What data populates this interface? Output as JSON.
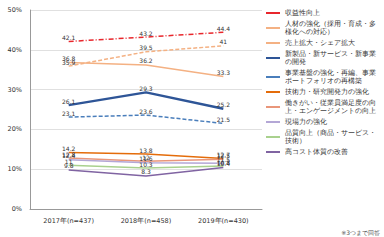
{
  "chart_data": {
    "type": "line",
    "categories": [
      "2017年(n=437)",
      "2018年(n=458)",
      "2019年(n=430)"
    ],
    "series": [
      {
        "name": "収益性向上",
        "color": "#e8262c",
        "line_style": "dashdot",
        "values": [
          42.1,
          43.2,
          44.4
        ]
      },
      {
        "name": "人材の強化（採用・育成・多様化への対応）",
        "color": "#f4b183",
        "line_style": "dashed",
        "values": [
          35.9,
          39.5,
          41.0
        ]
      },
      {
        "name": "売上拡大・シェア拡大",
        "color": "#f4b183",
        "line_style": "solid",
        "values": [
          36.8,
          36.2,
          33.3
        ]
      },
      {
        "name": "新製品・新サービス・新事業の開発",
        "color": "#2e5597",
        "line_style": "solid",
        "values": [
          26.1,
          29.3,
          25.2
        ]
      },
      {
        "name": "事業基盤の強化・再編、事業ポートフォリオの再構築",
        "color": "#4a7ebb",
        "line_style": "dashed",
        "values": [
          23.1,
          23.6,
          21.5
        ]
      },
      {
        "name": "技術力・研究開発力の強化",
        "color": "#e46c0a",
        "line_style": "solid",
        "values": [
          14.2,
          13.8,
          12.7
        ]
      },
      {
        "name": "働きがい・従業員満足度の向上・エンゲージメントの向上",
        "color": "#e9967a",
        "line_style": "solid",
        "values": [
          12.8,
          12.0,
          12.5
        ]
      },
      {
        "name": "現場力の強化",
        "color": "#b4a7d6",
        "line_style": "solid",
        "values": [
          12.4,
          11.6,
          11.5
        ]
      },
      {
        "name": "品質向上（商品・サービス・技術）",
        "color": "#a9d18e",
        "line_style": "solid",
        "values": [
          11.0,
          10.3,
          10.8
        ]
      },
      {
        "name": "高コスト体質の改善",
        "color": "#8064a2",
        "line_style": "solid",
        "values": [
          9.8,
          8.3,
          10.4
        ]
      }
    ],
    "ylim": [
      0,
      50
    ],
    "yticks": [
      {
        "value": 0,
        "label": "0%"
      },
      {
        "value": 10,
        "label": "10%"
      },
      {
        "value": 20,
        "label": "20%"
      },
      {
        "value": 30,
        "label": "30%"
      },
      {
        "value": 40,
        "label": "40%"
      },
      {
        "value": 50,
        "label": "50%"
      }
    ],
    "annotations": [
      "※3つまで回答"
    ],
    "grid": true,
    "legend": "right",
    "data_labels": true,
    "marker": "none"
  }
}
